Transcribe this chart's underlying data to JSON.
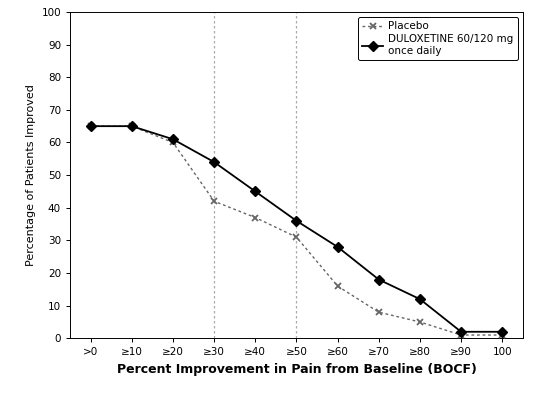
{
  "x_labels": [
    ">0",
    "≥10",
    "≥20",
    "≥30",
    "≥40",
    "≥50",
    "≥60",
    "≥70",
    "≥80",
    "≥90",
    "100"
  ],
  "x_positions": [
    0,
    1,
    2,
    3,
    4,
    5,
    6,
    7,
    8,
    9,
    10
  ],
  "placebo_y": [
    65,
    65,
    60,
    42,
    37,
    31,
    16,
    8,
    5,
    1,
    1
  ],
  "duloxetine_y": [
    65,
    65,
    61,
    54,
    45,
    36,
    28,
    18,
    12,
    2,
    2
  ],
  "placebo_color": "#666666",
  "duloxetine_color": "#000000",
  "vline_positions": [
    3,
    5
  ],
  "ylabel": "Percentage of Patients Improved",
  "xlabel": "Percent Improvement in Pain from Baseline (BOCF)",
  "ylim": [
    0,
    100
  ],
  "yticks": [
    0,
    10,
    20,
    30,
    40,
    50,
    60,
    70,
    80,
    90,
    100
  ],
  "legend_placebo": "Placebo",
  "legend_duloxetine": "DULOXETINE 60/120 mg\nonce daily",
  "background_color": "#ffffff"
}
